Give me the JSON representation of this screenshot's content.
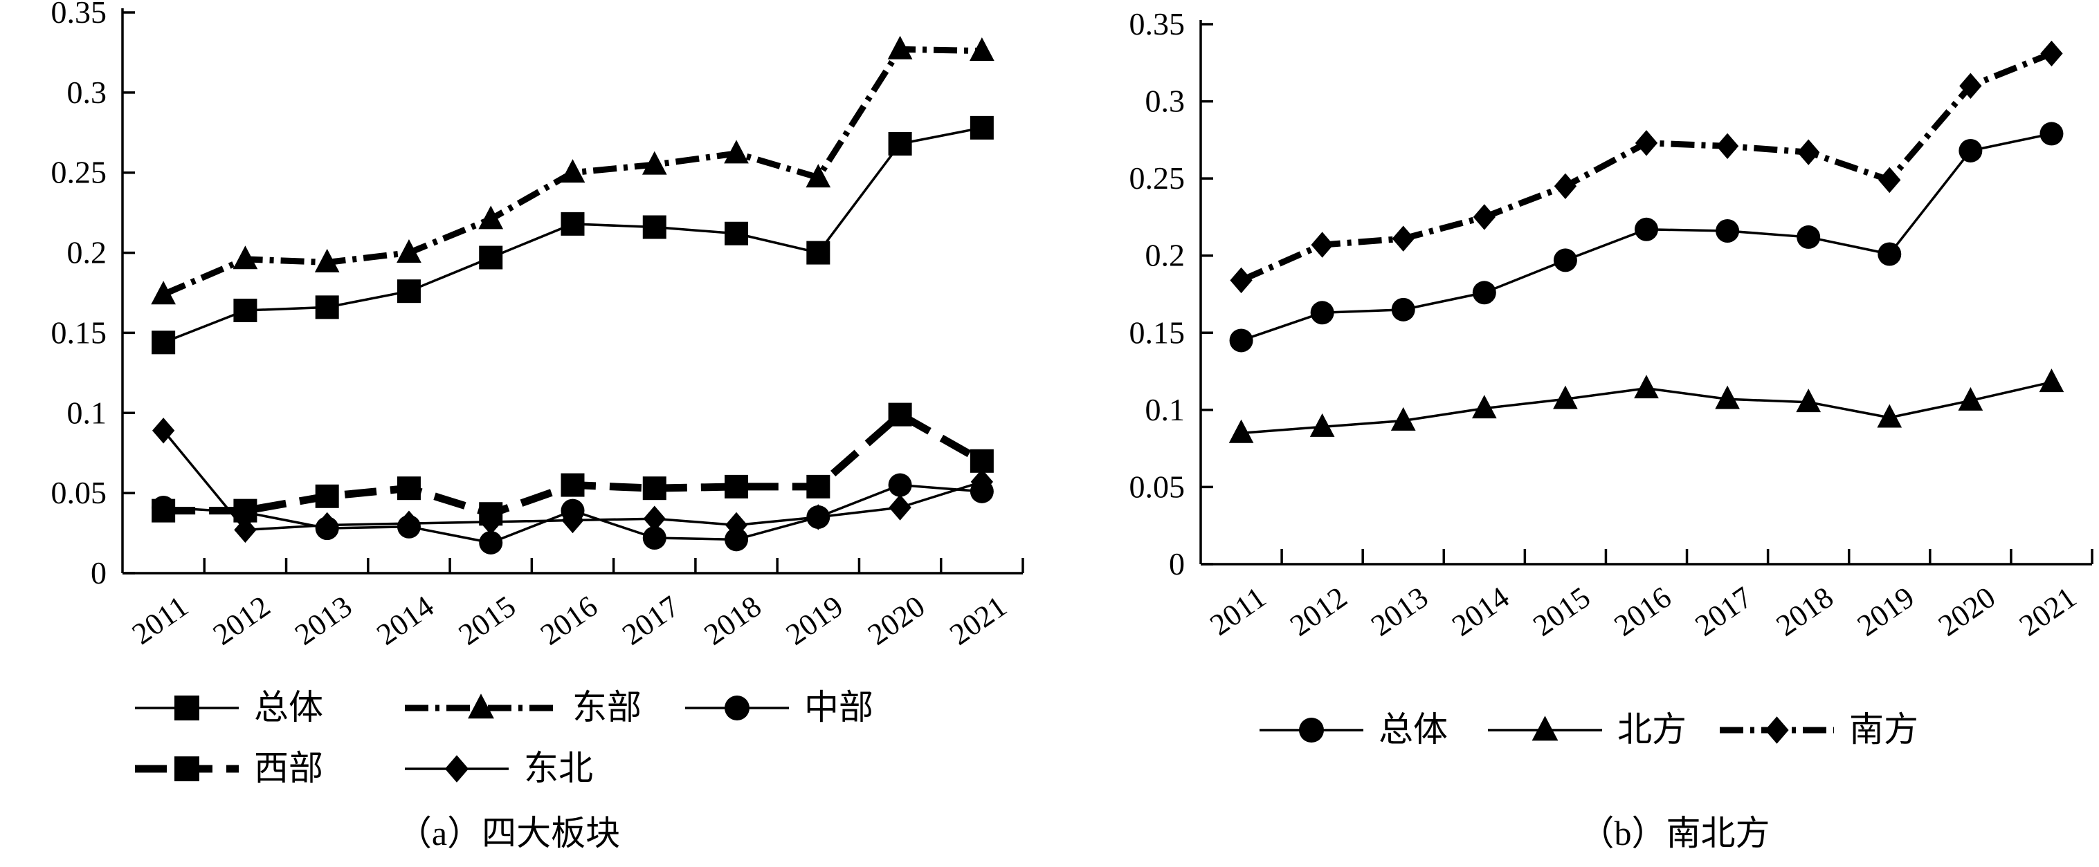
{
  "chart_data": [
    {
      "type": "line",
      "caption": "（a）四大板块",
      "categories": [
        "2011",
        "2012",
        "2013",
        "2014",
        "2015",
        "2016",
        "2017",
        "2018",
        "2019",
        "2020",
        "2021"
      ],
      "ylim": [
        0,
        0.35
      ],
      "yticks": [
        "0",
        "0.05",
        "0.1",
        "0.15",
        "0.2",
        "0.25",
        "0.3",
        "0.35"
      ],
      "legend_placement": "bottom",
      "series": [
        {
          "name": "总体",
          "marker": "square",
          "line": "thin-solid",
          "values": [
            0.144,
            0.164,
            0.166,
            0.176,
            0.197,
            0.218,
            0.216,
            0.212,
            0.2,
            0.268,
            0.278
          ]
        },
        {
          "name": "东部",
          "marker": "triangle",
          "line": "thick-dashdot",
          "values": [
            0.174,
            0.196,
            0.194,
            0.2,
            0.221,
            0.25,
            0.255,
            0.262,
            0.247,
            0.327,
            0.326
          ]
        },
        {
          "name": "中部",
          "marker": "circle",
          "line": "thin-solid",
          "values": [
            0.041,
            0.038,
            0.028,
            0.029,
            0.019,
            0.039,
            0.022,
            0.021,
            0.035,
            0.055,
            0.051
          ]
        },
        {
          "name": "西部",
          "marker": "square",
          "line": "thick-dashed",
          "values": [
            0.039,
            0.039,
            0.048,
            0.053,
            0.037,
            0.055,
            0.053,
            0.054,
            0.054,
            0.099,
            0.07
          ]
        },
        {
          "name": "东北",
          "marker": "diamond",
          "line": "thin-solid",
          "values": [
            0.089,
            0.027,
            0.03,
            0.031,
            0.032,
            0.033,
            0.034,
            0.03,
            0.035,
            0.041,
            0.057
          ]
        }
      ]
    },
    {
      "type": "line",
      "caption": "（b）南北方",
      "categories": [
        "2011",
        "2012",
        "2013",
        "2014",
        "2015",
        "2016",
        "2017",
        "2018",
        "2019",
        "2020",
        "2021"
      ],
      "ylim": [
        0,
        0.35
      ],
      "yticks": [
        "0",
        "0.05",
        "0.1",
        "0.15",
        "0.2",
        "0.25",
        "0.3",
        "0.35"
      ],
      "legend_placement": "bottom",
      "series": [
        {
          "name": "总体",
          "marker": "circle",
          "line": "thin-solid",
          "values": [
            0.145,
            0.163,
            0.165,
            0.176,
            0.197,
            0.217,
            0.216,
            0.212,
            0.201,
            0.268,
            0.279
          ]
        },
        {
          "name": "北方",
          "marker": "triangle",
          "line": "thin-solid",
          "values": [
            0.085,
            0.089,
            0.093,
            0.101,
            0.107,
            0.114,
            0.107,
            0.105,
            0.095,
            0.106,
            0.118
          ]
        },
        {
          "name": "南方",
          "marker": "diamond",
          "line": "thick-dashdot",
          "values": [
            0.184,
            0.207,
            0.211,
            0.225,
            0.245,
            0.273,
            0.271,
            0.267,
            0.249,
            0.31,
            0.331
          ]
        }
      ]
    }
  ]
}
